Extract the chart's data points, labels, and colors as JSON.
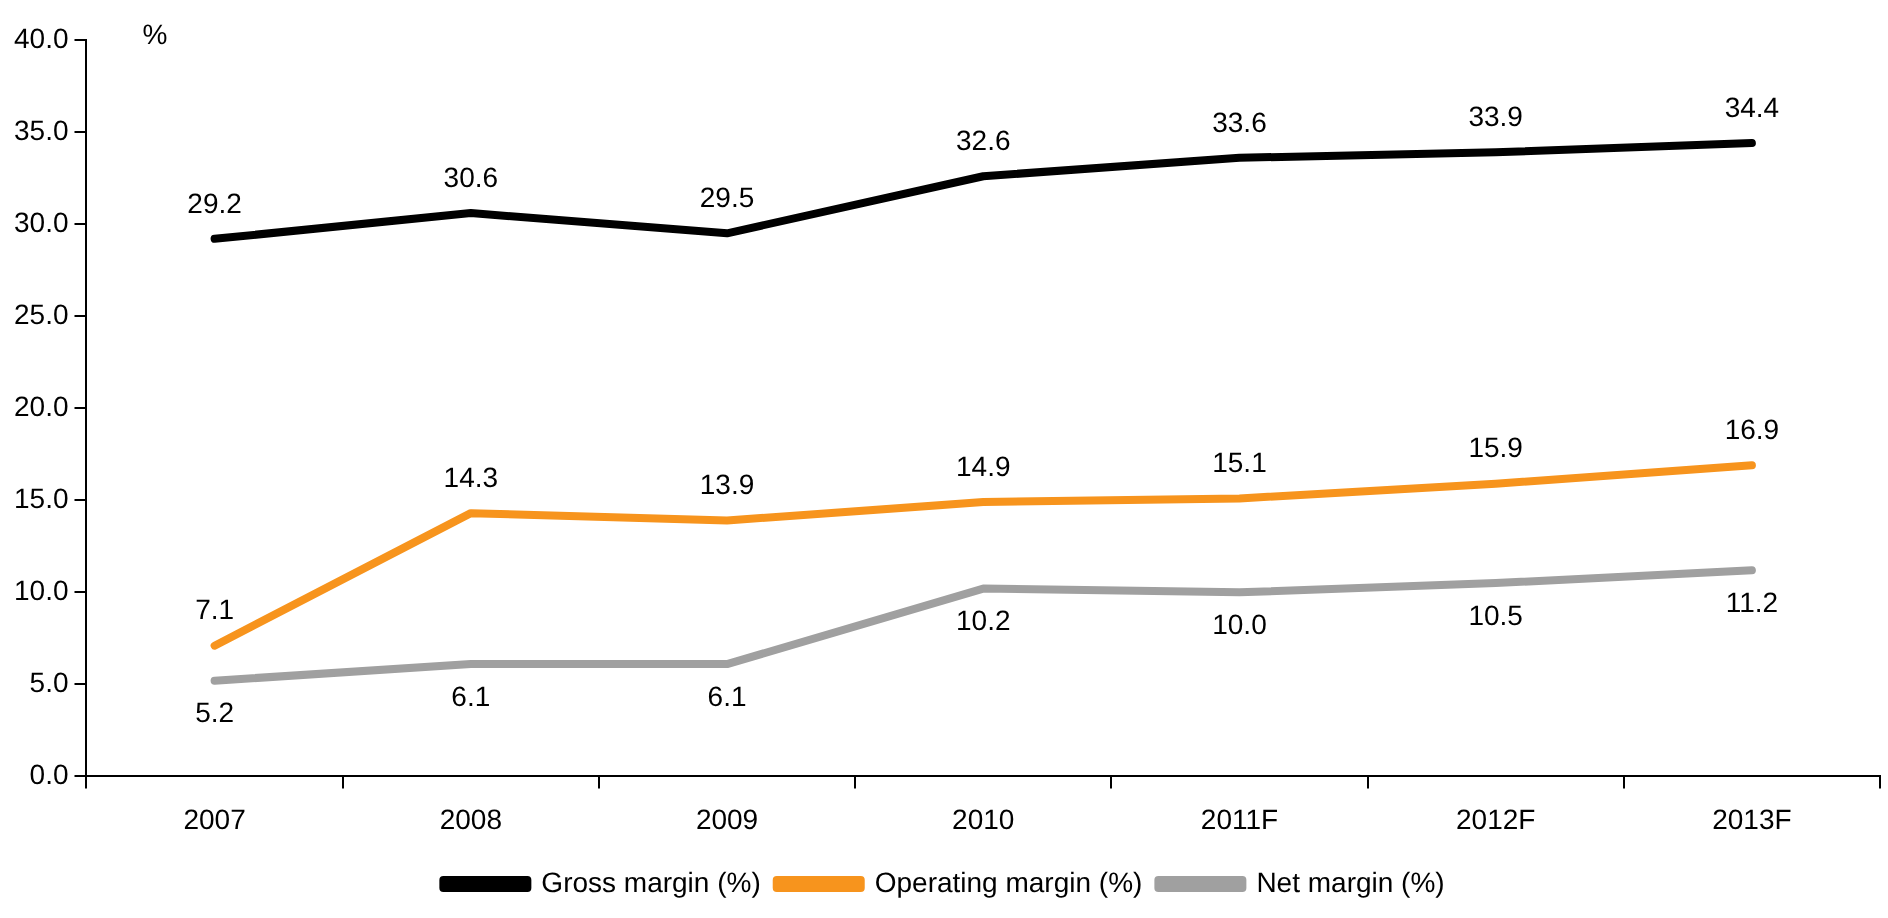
{
  "chart_data": {
    "type": "line",
    "ylabel": "%",
    "categories": [
      "2007",
      "2008",
      "2009",
      "2010",
      "2011F",
      "2012F",
      "2013F"
    ],
    "series": [
      {
        "name": "Gross margin (%)",
        "color": "#000000",
        "values": [
          29.2,
          30.6,
          29.5,
          32.6,
          33.6,
          33.9,
          34.4
        ],
        "value_labels": [
          "29.2",
          "30.6",
          "29.5",
          "32.6",
          "33.6",
          "33.9",
          "34.4"
        ]
      },
      {
        "name": "Operating margin (%)",
        "color": "#f7941d",
        "values": [
          7.1,
          14.3,
          13.9,
          14.9,
          15.1,
          15.9,
          16.9
        ],
        "value_labels": [
          "7.1",
          "14.3",
          "13.9",
          "14.9",
          "15.1",
          "15.9",
          "16.9"
        ]
      },
      {
        "name": "Net margin (%)",
        "color": "#a0a0a0",
        "values": [
          5.2,
          6.1,
          6.1,
          10.2,
          10.0,
          10.5,
          11.2
        ],
        "value_labels": [
          "5.2",
          "6.1",
          "6.1",
          "10.2",
          "10.0",
          "10.5",
          "11.2"
        ]
      }
    ],
    "ylim": [
      0,
      40
    ],
    "yticks": [
      {
        "value": 0,
        "label": "0.0"
      },
      {
        "value": 5,
        "label": "5.0"
      },
      {
        "value": 10,
        "label": "10.0"
      },
      {
        "value": 15,
        "label": "15.0"
      },
      {
        "value": 20,
        "label": "20.0"
      },
      {
        "value": 25,
        "label": "25.0"
      },
      {
        "value": 30,
        "label": "30.0"
      },
      {
        "value": 35,
        "label": "35.0"
      },
      {
        "value": 40,
        "label": "40.0"
      }
    ],
    "grid": false,
    "legend": "bottom",
    "marker": "none",
    "line_style": "solid"
  }
}
